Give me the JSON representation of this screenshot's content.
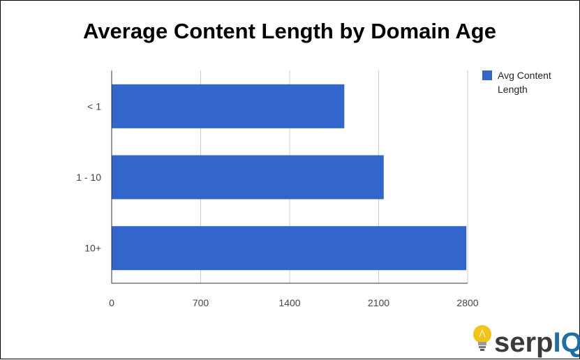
{
  "chart_data": {
    "type": "bar",
    "orientation": "horizontal",
    "title": "Average Content Length by Domain Age",
    "categories": [
      "< 1",
      "1 - 10",
      "10+"
    ],
    "series": [
      {
        "name": "Avg Content Length",
        "values": [
          1830,
          2140,
          2790
        ]
      }
    ],
    "xlim": [
      0,
      2800
    ],
    "xticks": [
      "0",
      "700",
      "1400",
      "2100",
      "2800"
    ],
    "grid": true,
    "legend_position": "top-right",
    "colors": {
      "bar": "#3366cc",
      "grid": "#cccccc",
      "axis": "#333333"
    }
  },
  "branding": {
    "logo_text_light": "serp",
    "logo_text_bold": "IQ",
    "logo_icon": "lightbulb-icon",
    "colors": {
      "serp": "#3a3a3a",
      "iq": "#1e6fa8",
      "bulb": "#f2c417"
    }
  }
}
